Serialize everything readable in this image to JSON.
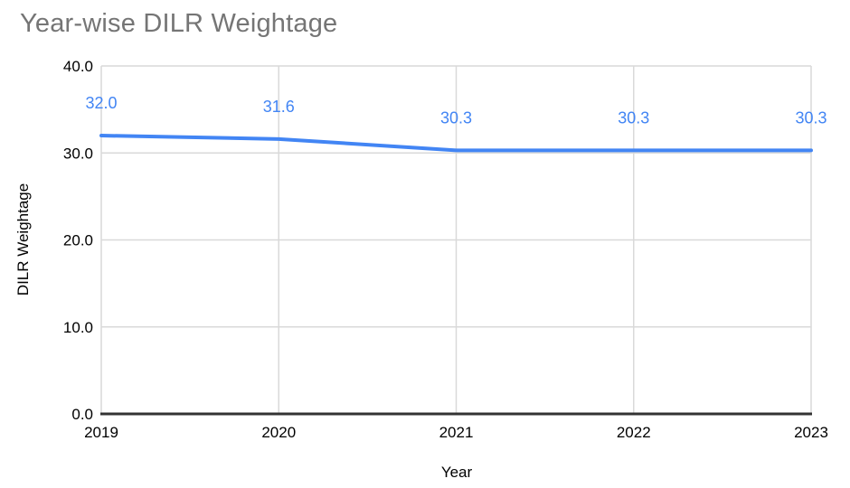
{
  "page": {
    "background": "#ffffff"
  },
  "chart": {
    "title_color": "#757575",
    "axis_title_color": "#000000",
    "tick_label_color": "#000000",
    "data_label_color": "#4285f4",
    "line_color": "#4285f4",
    "gridline_color": "#d9d9d9",
    "axis_line_color": "#333333"
  },
  "chart_data": {
    "type": "line",
    "title": "Year-wise DILR Weightage",
    "xlabel": "Year",
    "ylabel": "DILR Weightage",
    "categories": [
      "2019",
      "2020",
      "2021",
      "2022",
      "2023"
    ],
    "series": [
      {
        "name": "DILR Weightage",
        "values": [
          32.0,
          31.6,
          30.3,
          30.3,
          30.3
        ],
        "labels": [
          "32.0",
          "31.6",
          "30.3",
          "30.3",
          "30.3"
        ],
        "color": "#4285f4"
      }
    ],
    "ylim": [
      0,
      40
    ],
    "yticks": [
      0,
      10,
      20,
      30,
      40
    ],
    "ytick_labels": [
      "0.0",
      "10.0",
      "20.0",
      "30.0",
      "40.0"
    ],
    "grid": true,
    "legend_position": "none"
  }
}
